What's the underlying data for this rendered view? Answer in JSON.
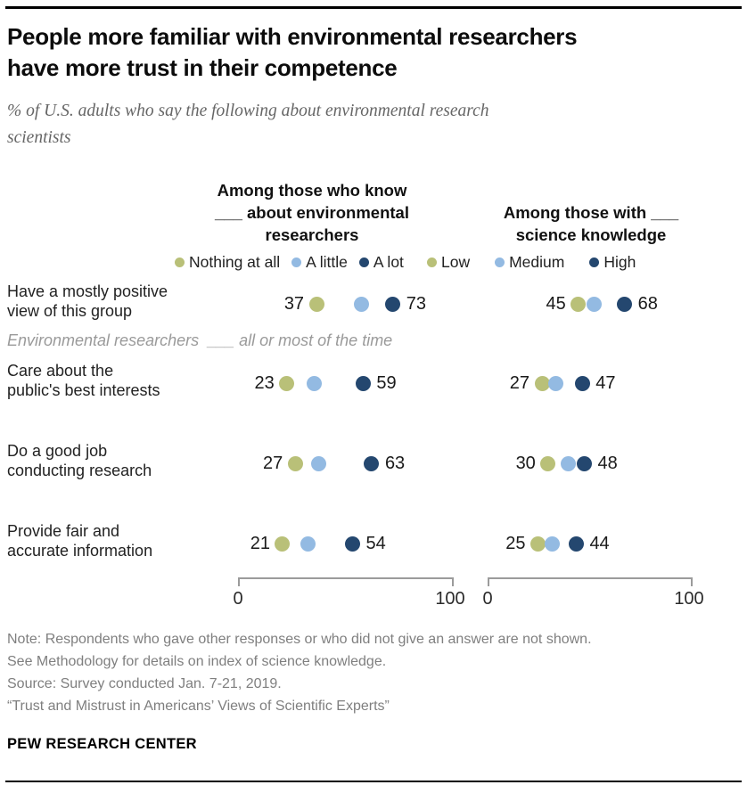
{
  "header": {
    "title_lines": [
      "People more familiar with environmental researchers",
      "have more trust in their competence"
    ],
    "subtitle_lines": [
      "% of U.S. adults who say the following about environmental research",
      "scientists"
    ]
  },
  "chart_data": {
    "type": "scatter",
    "title": "People more familiar with environmental researchers have more trust in their competence",
    "subtitle": "% of U.S. adults who say the following about environmental research scientists",
    "inner_heading": "Environmental researchers  ___ all or most of the time",
    "categories": [
      "Have a mostly positive view of this group",
      "Care about the public's best interests",
      "Do a good job conducting research",
      "Provide fair and accurate information"
    ],
    "category_lines": [
      [
        "Have a mostly positive",
        "view of this group"
      ],
      [
        "Care about the",
        "public's best interests"
      ],
      [
        "Do a good job",
        "conducting research"
      ],
      [
        "Provide fair and",
        "accurate information"
      ]
    ],
    "panels": [
      {
        "header_lines": [
          "Among those who know",
          "___ about environmental",
          "researchers"
        ],
        "xlim": [
          0,
          100
        ],
        "series": [
          {
            "name": "Nothing at all",
            "color": "#b9c078",
            "values": [
              37,
              23,
              27,
              21
            ],
            "labeled": true
          },
          {
            "name": "A little",
            "color": "#93bae2",
            "values": [
              58,
              36,
              38,
              33
            ],
            "labeled": false
          },
          {
            "name": "A lot",
            "color": "#24476f",
            "values": [
              73,
              59,
              63,
              54
            ],
            "labeled": true
          }
        ]
      },
      {
        "header_lines": [
          "Among those with ___",
          "science knowledge"
        ],
        "xlim": [
          0,
          100
        ],
        "series": [
          {
            "name": "Low",
            "color": "#b9c078",
            "values": [
              45,
              27,
              30,
              25
            ],
            "labeled": true
          },
          {
            "name": "Medium",
            "color": "#93bae2",
            "values": [
              53,
              34,
              40,
              32
            ],
            "labeled": false
          },
          {
            "name": "High",
            "color": "#24476f",
            "values": [
              68,
              47,
              48,
              44
            ],
            "labeled": true
          }
        ]
      }
    ],
    "legend_position": "top",
    "grid": false
  },
  "notes": {
    "lines": [
      "Note: Respondents who gave other responses or who did not give an answer are not shown.",
      "See Methodology for details on index of science knowledge.",
      "Source: Survey conducted Jan. 7-21, 2019.",
      "“Trust and Mistrust in Americans’ Views of Scientific Experts”"
    ]
  },
  "footer": {
    "brand": "PEW RESEARCH CENTER"
  }
}
